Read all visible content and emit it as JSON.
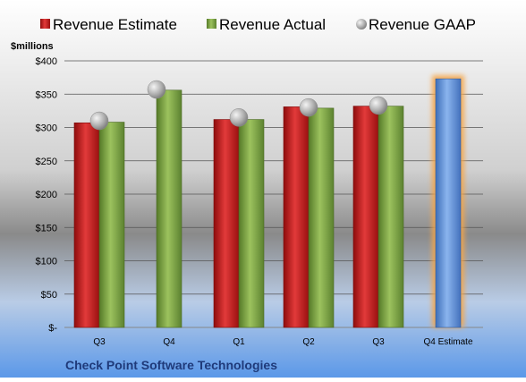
{
  "chart_data": {
    "type": "bar",
    "title": "Check Point Software Technologies",
    "ylabel": "$millions",
    "xlabel": "",
    "ylim": [
      0,
      400
    ],
    "yticks": [
      0,
      50,
      100,
      150,
      200,
      250,
      300,
      350,
      400
    ],
    "ytick_labels": [
      "$-",
      "$50",
      "$100",
      "$150",
      "$200",
      "$250",
      "$300",
      "$350",
      "$400"
    ],
    "categories": [
      "Q3",
      "Q4",
      "Q1",
      "Q2",
      "Q3",
      "Q4 Estimate"
    ],
    "grid": true,
    "legend_placement": "top",
    "series": [
      {
        "name": "Revenue Estimate",
        "kind": "bar",
        "color": "#c81e1e",
        "values": [
          307,
          null,
          312,
          331,
          332,
          null
        ]
      },
      {
        "name": "Revenue Actual",
        "kind": "bar",
        "color": "#7aa342",
        "values": [
          308,
          356,
          312,
          329,
          332,
          null
        ]
      },
      {
        "name": "Revenue GAAP",
        "kind": "marker",
        "color": "#a8a8a8",
        "values": [
          310,
          357,
          315,
          330,
          333,
          null
        ]
      },
      {
        "name": "Q4 Estimate",
        "kind": "bar",
        "color": "#5b8fd6",
        "highlight_color": "#f5a64a",
        "values": [
          null,
          null,
          null,
          null,
          null,
          373
        ]
      }
    ]
  }
}
